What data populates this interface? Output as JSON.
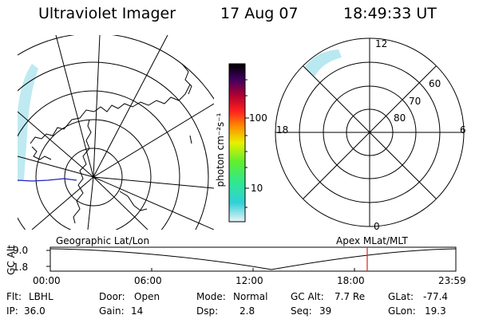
{
  "header": {
    "instrument": "Ultraviolet Imager",
    "date": "17 Aug 07",
    "time": "18:49:33 UT"
  },
  "colorbar": {
    "unit_label": "photon cm⁻²s⁻¹",
    "tick_labels": [
      "100",
      "10"
    ]
  },
  "polar_plot": {
    "mlt_labels": [
      "12",
      "18",
      "6",
      "0"
    ],
    "lat_labels": [
      "60",
      "70",
      "80"
    ]
  },
  "timeline": {
    "left_title": "Geographic Lat/Lon",
    "right_title": "Apex MLat/MLT",
    "axis_label": "GC Alt",
    "y_ticks": [
      "9.0",
      "1.8"
    ],
    "x_ticks": [
      "00:00",
      "06:00",
      "12:00",
      "18:00",
      "23:59"
    ],
    "marker_time": "18:49",
    "marker_color": "#dd2222"
  },
  "status": {
    "filter_label": "Flt:",
    "filter_value": "LBHL",
    "door_label": "Door:",
    "door_value": "Open",
    "mode_label": "Mode:",
    "mode_value": "Normal",
    "gcalt_label": "GC Alt:",
    "gcalt_value": "7.7 Re",
    "glat_label": "GLat:",
    "glat_value": "-77.4",
    "ip_label": "IP:",
    "ip_value": "36.0",
    "gain_label": "Gain:",
    "gain_value": "14",
    "dsp_label": "Dsp:",
    "dsp_value": "2.8",
    "seq_label": "Seq:",
    "seq_value": "39",
    "glon_label": "GLon:",
    "glon_value": "19.3"
  },
  "colors": {
    "colorbar_stops": [
      "#e8f4f8",
      "#30d0d8",
      "#40e840",
      "#f0f000",
      "#ff9000",
      "#ff2020",
      "#a00030",
      "#300060",
      "#000000"
    ],
    "aurora": "#b0e8f0",
    "coastline": "#000000",
    "terminator": "#2020c0"
  }
}
